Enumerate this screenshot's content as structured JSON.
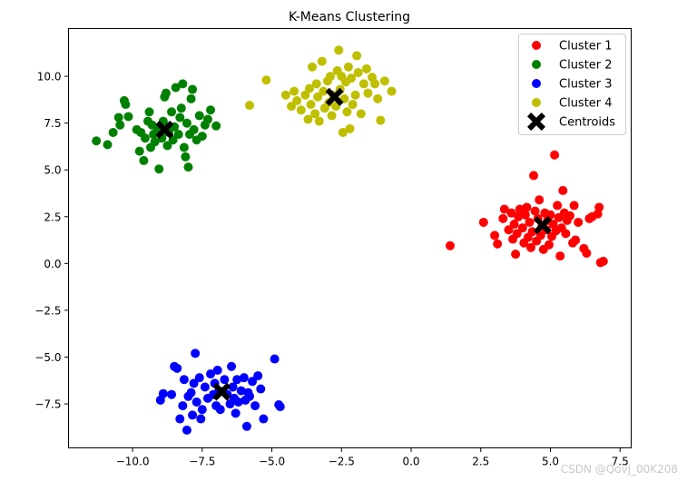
{
  "watermark": "CSDN @Qovj_00K208",
  "chart_data": {
    "type": "scatter",
    "title": "K-Means Clustering",
    "xlabel": "",
    "ylabel": "",
    "xlim": [
      -12.3,
      7.9
    ],
    "ylim": [
      -9.85,
      12.55
    ],
    "xticks": [
      -10.0,
      -7.5,
      -5.0,
      -2.5,
      0.0,
      2.5,
      5.0,
      7.5
    ],
    "yticks": [
      -7.5,
      -5.0,
      -2.5,
      0.0,
      2.5,
      5.0,
      7.5,
      10.0
    ],
    "xtick_labels": [
      "−10.0",
      "−7.5",
      "−5.0",
      "−2.5",
      "0.0",
      "2.5",
      "5.0",
      "7.5"
    ],
    "ytick_labels": [
      "−7.5",
      "−5.0",
      "−2.5",
      "0.0",
      "2.5",
      "5.0",
      "7.5",
      "10.0"
    ],
    "grid": false,
    "legend_position": "top-right",
    "series": [
      {
        "name": "Cluster 1",
        "color": "#ff0000",
        "points": [
          [
            1.4,
            0.95
          ],
          [
            2.6,
            2.2
          ],
          [
            3.0,
            1.5
          ],
          [
            3.1,
            1.05
          ],
          [
            3.3,
            2.4
          ],
          [
            3.35,
            2.9
          ],
          [
            3.5,
            1.8
          ],
          [
            3.6,
            2.7
          ],
          [
            3.65,
            1.3
          ],
          [
            3.7,
            2.1
          ],
          [
            3.75,
            0.5
          ],
          [
            3.8,
            1.6
          ],
          [
            3.85,
            2.5
          ],
          [
            3.9,
            2.9
          ],
          [
            4.0,
            1.9
          ],
          [
            4.05,
            1.1
          ],
          [
            4.1,
            2.6
          ],
          [
            4.15,
            3.0
          ],
          [
            4.2,
            1.4
          ],
          [
            4.25,
            2.2
          ],
          [
            4.3,
            0.85
          ],
          [
            4.35,
            1.7
          ],
          [
            4.4,
            4.7
          ],
          [
            4.45,
            2.8
          ],
          [
            4.5,
            1.2
          ],
          [
            4.55,
            2.4
          ],
          [
            4.6,
            3.4
          ],
          [
            4.65,
            1.5
          ],
          [
            4.7,
            2.0
          ],
          [
            4.75,
            0.75
          ],
          [
            4.8,
            2.7
          ],
          [
            4.85,
            1.8
          ],
          [
            4.9,
            2.3
          ],
          [
            4.95,
            1.0
          ],
          [
            5.0,
            2.6
          ],
          [
            5.05,
            1.45
          ],
          [
            5.1,
            2.1
          ],
          [
            5.15,
            5.8
          ],
          [
            5.2,
            1.75
          ],
          [
            5.25,
            3.1
          ],
          [
            5.3,
            2.45
          ],
          [
            5.35,
            0.4
          ],
          [
            5.4,
            1.9
          ],
          [
            5.45,
            3.9
          ],
          [
            5.5,
            2.7
          ],
          [
            5.55,
            1.6
          ],
          [
            5.6,
            2.3
          ],
          [
            5.7,
            2.55
          ],
          [
            5.8,
            1.1
          ],
          [
            5.85,
            3.1
          ],
          [
            5.9,
            1.25
          ],
          [
            6.0,
            2.2
          ],
          [
            6.2,
            0.8
          ],
          [
            6.3,
            0.55
          ],
          [
            6.4,
            2.4
          ],
          [
            6.5,
            2.5
          ],
          [
            6.7,
            2.65
          ],
          [
            6.75,
            3.0
          ],
          [
            6.8,
            0.05
          ],
          [
            6.9,
            0.12
          ]
        ]
      },
      {
        "name": "Cluster 2",
        "color": "#008000",
        "points": [
          [
            -11.3,
            6.55
          ],
          [
            -10.9,
            6.35
          ],
          [
            -10.7,
            7.0
          ],
          [
            -10.5,
            7.8
          ],
          [
            -10.45,
            7.4
          ],
          [
            -10.3,
            8.7
          ],
          [
            -10.25,
            8.5
          ],
          [
            -10.15,
            7.85
          ],
          [
            -9.85,
            7.15
          ],
          [
            -9.75,
            6.0
          ],
          [
            -9.7,
            7.0
          ],
          [
            -9.6,
            5.5
          ],
          [
            -9.55,
            6.7
          ],
          [
            -9.45,
            7.6
          ],
          [
            -9.4,
            8.1
          ],
          [
            -9.35,
            6.2
          ],
          [
            -9.3,
            7.4
          ],
          [
            -9.25,
            6.9
          ],
          [
            -9.2,
            6.5
          ],
          [
            -9.1,
            7.2
          ],
          [
            -9.05,
            5.05
          ],
          [
            -8.95,
            6.7
          ],
          [
            -8.9,
            7.6
          ],
          [
            -8.85,
            8.9
          ],
          [
            -8.8,
            9.1
          ],
          [
            -8.75,
            6.3
          ],
          [
            -8.7,
            7.0
          ],
          [
            -8.6,
            8.1
          ],
          [
            -8.55,
            6.6
          ],
          [
            -8.5,
            7.3
          ],
          [
            -8.45,
            9.4
          ],
          [
            -8.35,
            6.9
          ],
          [
            -8.3,
            7.8
          ],
          [
            -8.25,
            8.3
          ],
          [
            -8.2,
            9.6
          ],
          [
            -8.15,
            6.2
          ],
          [
            -8.1,
            5.7
          ],
          [
            -8.05,
            7.5
          ],
          [
            -8.0,
            5.15
          ],
          [
            -7.95,
            6.9
          ],
          [
            -7.9,
            8.8
          ],
          [
            -7.85,
            9.3
          ],
          [
            -7.8,
            7.15
          ],
          [
            -7.7,
            6.6
          ],
          [
            -7.6,
            7.9
          ],
          [
            -7.5,
            6.8
          ],
          [
            -7.4,
            7.4
          ],
          [
            -7.3,
            7.7
          ],
          [
            -7.2,
            8.2
          ],
          [
            -7.0,
            7.35
          ]
        ]
      },
      {
        "name": "Cluster 3",
        "color": "#0000ff",
        "points": [
          [
            -9.0,
            -7.3
          ],
          [
            -8.9,
            -6.95
          ],
          [
            -8.6,
            -7.0
          ],
          [
            -8.5,
            -5.5
          ],
          [
            -8.4,
            -5.6
          ],
          [
            -8.3,
            -8.3
          ],
          [
            -8.2,
            -7.6
          ],
          [
            -8.15,
            -6.2
          ],
          [
            -8.05,
            -8.9
          ],
          [
            -8.0,
            -7.1
          ],
          [
            -7.9,
            -6.9
          ],
          [
            -7.85,
            -8.1
          ],
          [
            -7.8,
            -6.4
          ],
          [
            -7.75,
            -4.8
          ],
          [
            -7.7,
            -7.4
          ],
          [
            -7.6,
            -6.1
          ],
          [
            -7.55,
            -8.3
          ],
          [
            -7.5,
            -7.8
          ],
          [
            -7.4,
            -6.6
          ],
          [
            -7.3,
            -7.2
          ],
          [
            -7.2,
            -5.9
          ],
          [
            -7.1,
            -7.0
          ],
          [
            -7.05,
            -6.4
          ],
          [
            -7.0,
            -7.6
          ],
          [
            -6.95,
            -5.7
          ],
          [
            -6.9,
            -6.8
          ],
          [
            -6.85,
            -7.8
          ],
          [
            -6.7,
            -6.2
          ],
          [
            -6.6,
            -7.0
          ],
          [
            -6.5,
            -7.5
          ],
          [
            -6.45,
            -5.5
          ],
          [
            -6.4,
            -6.6
          ],
          [
            -6.35,
            -7.2
          ],
          [
            -6.3,
            -8.0
          ],
          [
            -6.25,
            -6.2
          ],
          [
            -6.2,
            -7.4
          ],
          [
            -6.1,
            -6.8
          ],
          [
            -6.0,
            -6.1
          ],
          [
            -5.95,
            -7.3
          ],
          [
            -5.9,
            -8.7
          ],
          [
            -5.85,
            -6.9
          ],
          [
            -5.8,
            -7.1
          ],
          [
            -5.7,
            -6.3
          ],
          [
            -5.6,
            -7.6
          ],
          [
            -5.5,
            -6.0
          ],
          [
            -5.4,
            -6.7
          ],
          [
            -5.3,
            -8.3
          ],
          [
            -4.9,
            -5.1
          ],
          [
            -4.75,
            -7.55
          ],
          [
            -4.7,
            -7.65
          ]
        ]
      },
      {
        "name": "Cluster 4",
        "color": "#bfbf00",
        "points": [
          [
            -5.8,
            8.45
          ],
          [
            -5.2,
            9.8
          ],
          [
            -4.5,
            9.0
          ],
          [
            -4.3,
            8.4
          ],
          [
            -4.2,
            9.2
          ],
          [
            -4.1,
            8.7
          ],
          [
            -3.95,
            8.2
          ],
          [
            -3.8,
            9.0
          ],
          [
            -3.7,
            7.7
          ],
          [
            -3.65,
            9.35
          ],
          [
            -3.6,
            8.5
          ],
          [
            -3.55,
            10.5
          ],
          [
            -3.45,
            8.0
          ],
          [
            -3.4,
            9.6
          ],
          [
            -3.35,
            8.9
          ],
          [
            -3.3,
            7.6
          ],
          [
            -3.2,
            10.8
          ],
          [
            -3.15,
            9.2
          ],
          [
            -3.1,
            8.3
          ],
          [
            -3.0,
            9.75
          ],
          [
            -2.95,
            8.6
          ],
          [
            -2.9,
            10.0
          ],
          [
            -2.85,
            7.9
          ],
          [
            -2.8,
            9.0
          ],
          [
            -2.7,
            8.4
          ],
          [
            -2.65,
            10.3
          ],
          [
            -2.6,
            11.4
          ],
          [
            -2.55,
            9.3
          ],
          [
            -2.5,
            10.0
          ],
          [
            -2.45,
            7.0
          ],
          [
            -2.4,
            8.8
          ],
          [
            -2.35,
            9.7
          ],
          [
            -2.3,
            8.1
          ],
          [
            -2.25,
            10.5
          ],
          [
            -2.2,
            7.2
          ],
          [
            -2.15,
            9.9
          ],
          [
            -2.1,
            8.5
          ],
          [
            -2.0,
            9.0
          ],
          [
            -1.95,
            11.1
          ],
          [
            -1.9,
            10.2
          ],
          [
            -1.8,
            8.0
          ],
          [
            -1.7,
            9.6
          ],
          [
            -1.6,
            10.4
          ],
          [
            -1.55,
            9.1
          ],
          [
            -1.4,
            9.95
          ],
          [
            -1.3,
            9.6
          ],
          [
            -1.2,
            8.8
          ],
          [
            -1.1,
            7.65
          ],
          [
            -0.95,
            9.75
          ],
          [
            -0.7,
            9.2
          ]
        ]
      }
    ],
    "centroids": {
      "name": "Centroids",
      "color": "#000000",
      "points": [
        [
          4.72,
          2.05
        ],
        [
          -8.85,
          7.15
        ],
        [
          -6.8,
          -6.85
        ],
        [
          -2.75,
          8.9
        ]
      ]
    }
  }
}
